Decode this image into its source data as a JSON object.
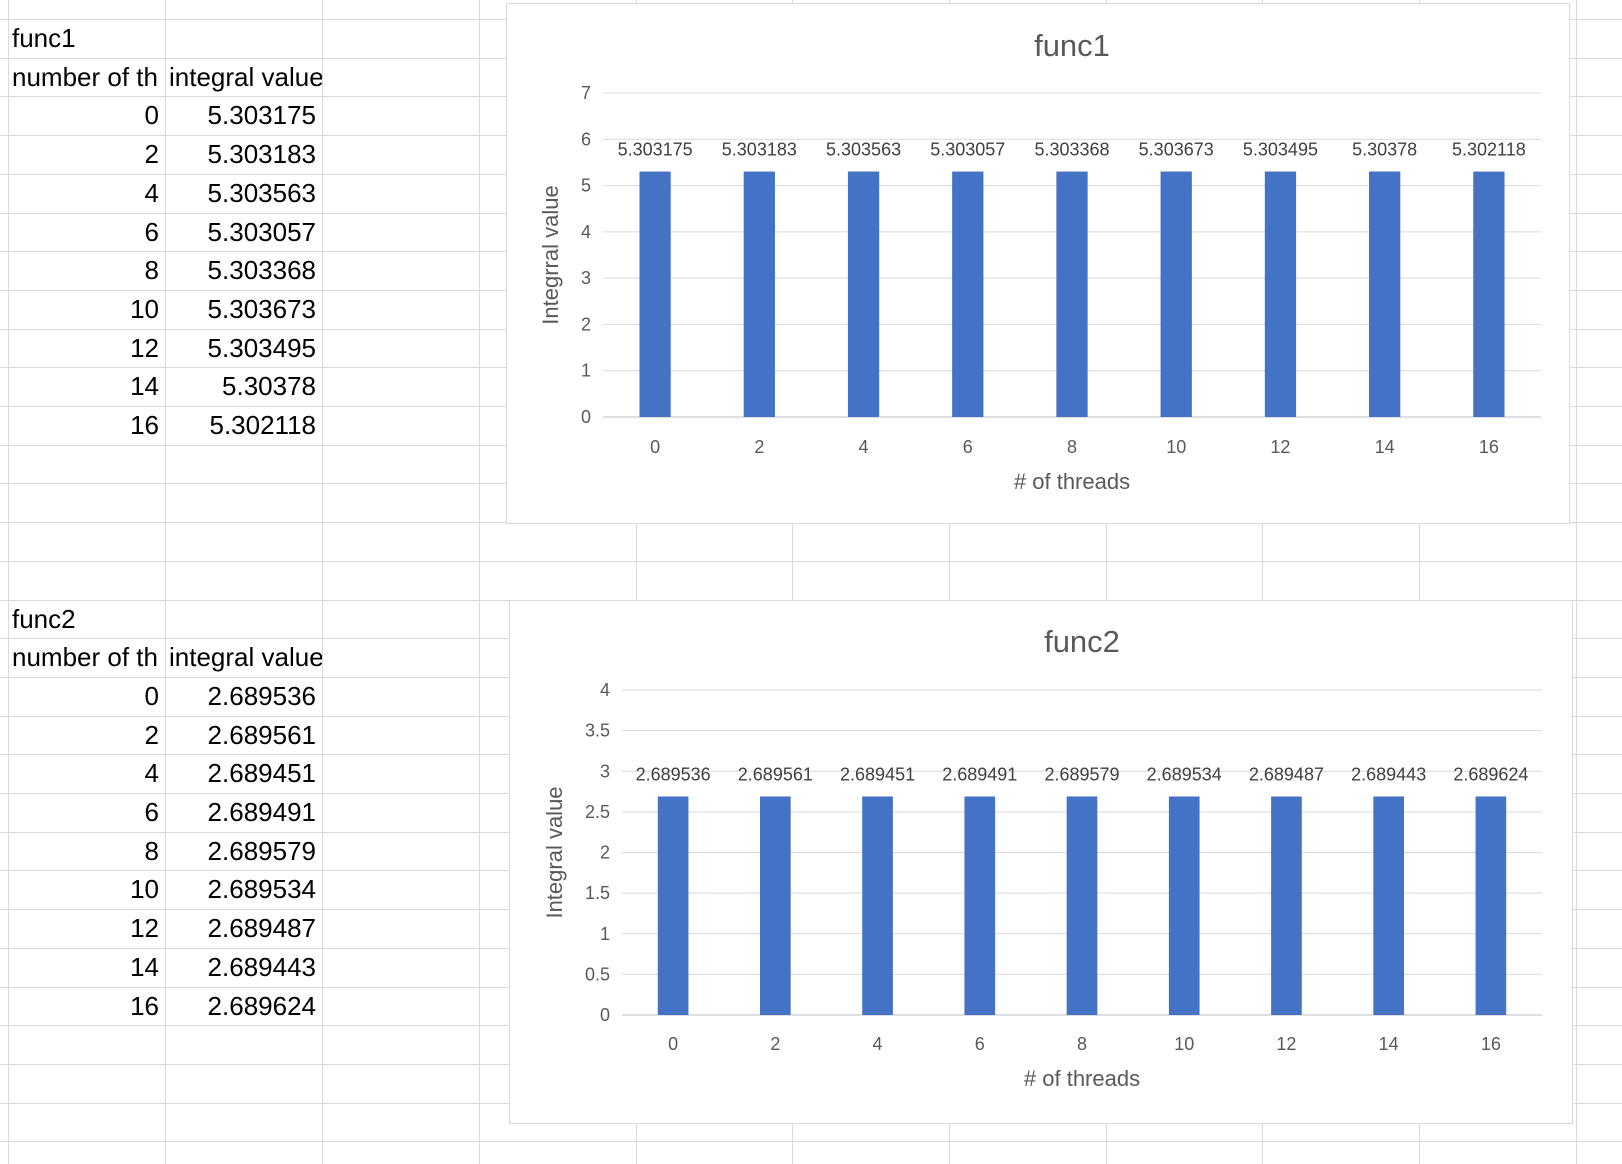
{
  "tables": [
    {
      "title": "func1",
      "headers": [
        "number of th",
        "integral value"
      ],
      "rows": [
        [
          "0",
          "5.303175"
        ],
        [
          "2",
          "5.303183"
        ],
        [
          "4",
          "5.303563"
        ],
        [
          "6",
          "5.303057"
        ],
        [
          "8",
          "5.303368"
        ],
        [
          "10",
          "5.303673"
        ],
        [
          "12",
          "5.303495"
        ],
        [
          "14",
          "5.30378"
        ],
        [
          "16",
          "5.302118"
        ]
      ]
    },
    {
      "title": "func2",
      "headers": [
        "number of th",
        "integral value"
      ],
      "rows": [
        [
          "0",
          "2.689536"
        ],
        [
          "2",
          "2.689561"
        ],
        [
          "4",
          "2.689451"
        ],
        [
          "6",
          "2.689491"
        ],
        [
          "8",
          "2.689579"
        ],
        [
          "10",
          "2.689534"
        ],
        [
          "12",
          "2.689487"
        ],
        [
          "14",
          "2.689443"
        ],
        [
          "16",
          "2.689624"
        ]
      ]
    }
  ],
  "chart_data": [
    {
      "type": "bar",
      "title": "func1",
      "xlabel": "# of threads",
      "ylabel": "Integrral value",
      "categories": [
        "0",
        "2",
        "4",
        "6",
        "8",
        "10",
        "12",
        "14",
        "16"
      ],
      "values": [
        5.303175,
        5.303183,
        5.303563,
        5.303057,
        5.303368,
        5.303673,
        5.303495,
        5.30378,
        5.302118
      ],
      "data_labels": [
        "5.303175",
        "5.303183",
        "5.303563",
        "5.303057",
        "5.303368",
        "5.303673",
        "5.303495",
        "5.30378",
        "5.302118"
      ],
      "ylim": [
        0,
        7
      ],
      "yticks": [
        "0",
        "1",
        "2",
        "3",
        "4",
        "5",
        "6",
        "7"
      ],
      "grid": true,
      "legend": "none",
      "bar_color": "#4472C4"
    },
    {
      "type": "bar",
      "title": "func2",
      "xlabel": "# of threads",
      "ylabel": "Integral value",
      "categories": [
        "0",
        "2",
        "4",
        "6",
        "8",
        "10",
        "12",
        "14",
        "16"
      ],
      "values": [
        2.689536,
        2.689561,
        2.689451,
        2.689491,
        2.689579,
        2.689534,
        2.689487,
        2.689443,
        2.689624
      ],
      "data_labels": [
        "2.689536",
        "2.689561",
        "2.689451",
        "2.689491",
        "2.689579",
        "2.689534",
        "2.689487",
        "2.689443",
        "2.689624"
      ],
      "ylim": [
        0,
        4
      ],
      "yticks": [
        "0",
        "0.5",
        "1",
        "1.5",
        "2",
        "2.5",
        "3",
        "3.5",
        "4"
      ],
      "grid": true,
      "legend": "none",
      "bar_color": "#4472C4"
    }
  ]
}
